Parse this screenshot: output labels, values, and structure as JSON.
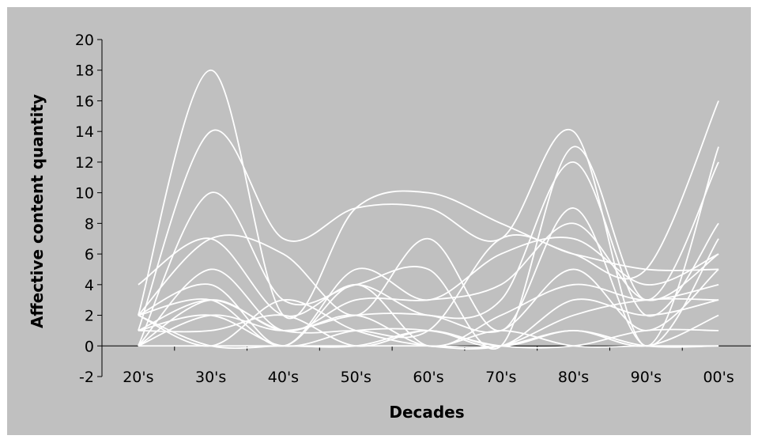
{
  "chart_data": {
    "type": "line",
    "title": "",
    "xlabel": "Decades",
    "ylabel": "Affective content quantity",
    "categories": [
      "20's",
      "30's",
      "40's",
      "50's",
      "60's",
      "70's",
      "80's",
      "90's",
      "00's"
    ],
    "ylim": [
      -2,
      20
    ],
    "yticks": [
      -2,
      0,
      2,
      4,
      6,
      8,
      10,
      12,
      14,
      16,
      18,
      20
    ],
    "grid": false,
    "legend": "none",
    "line_color": "#ffffff",
    "background_color": "#c0c0c0",
    "series": [
      {
        "values": [
          2,
          18,
          2,
          9,
          10,
          8,
          6,
          5,
          16
        ]
      },
      {
        "values": [
          1,
          14,
          7,
          9,
          9,
          7,
          14,
          0,
          13
        ]
      },
      {
        "values": [
          0,
          10,
          3,
          4,
          5,
          0,
          13,
          3,
          12
        ]
      },
      {
        "values": [
          4,
          7,
          2,
          4,
          2,
          3,
          12,
          2,
          8
        ]
      },
      {
        "values": [
          2,
          7,
          6,
          2,
          7,
          1,
          9,
          0,
          7
        ]
      },
      {
        "values": [
          0,
          5,
          1,
          3,
          3,
          4,
          8,
          3,
          6
        ]
      },
      {
        "values": [
          2,
          4,
          0,
          5,
          3,
          6,
          7,
          4,
          6
        ]
      },
      {
        "values": [
          1,
          3,
          1,
          1,
          1,
          7,
          6,
          5,
          5
        ]
      },
      {
        "values": [
          0,
          2,
          1,
          2,
          2,
          1,
          5,
          1,
          5
        ]
      },
      {
        "values": [
          2,
          3,
          0,
          4,
          0,
          2,
          4,
          3,
          4
        ]
      },
      {
        "values": [
          1,
          1,
          2,
          0,
          1,
          0,
          3,
          2,
          3
        ]
      },
      {
        "values": [
          2,
          0,
          3,
          1,
          0,
          0,
          2,
          3,
          3
        ]
      },
      {
        "values": [
          0,
          0,
          0,
          0,
          0,
          0,
          1,
          0,
          2
        ]
      },
      {
        "values": [
          1,
          2,
          0,
          1,
          1,
          0,
          0,
          1,
          1
        ]
      },
      {
        "values": [
          0,
          3,
          1,
          2,
          0,
          1,
          0,
          0,
          0
        ]
      },
      {
        "values": [
          2,
          0,
          0,
          0,
          1,
          0,
          1,
          0,
          0
        ]
      }
    ]
  }
}
